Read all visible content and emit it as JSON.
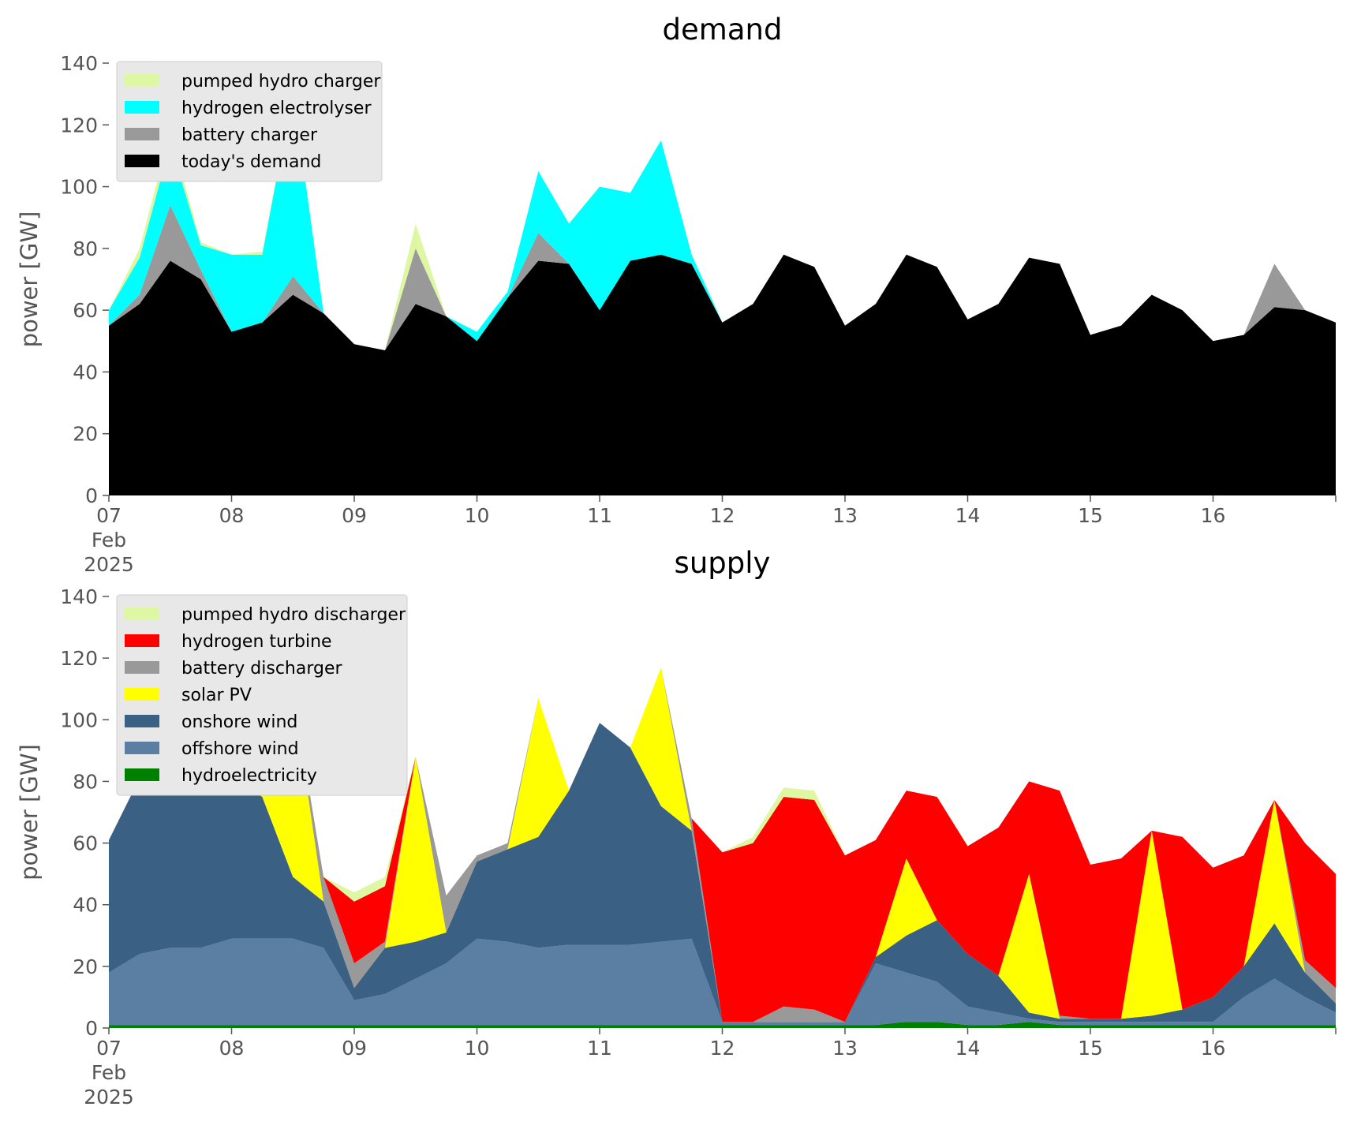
{
  "chart_data": [
    {
      "id": "demand",
      "type": "area",
      "stacked": true,
      "title": "demand",
      "ylabel": "power [GW]",
      "ylim": [
        0,
        140
      ],
      "yticks": [
        0,
        20,
        40,
        60,
        80,
        100,
        120,
        140
      ],
      "xlim": [
        "2025-02-07T00:00",
        "2025-02-17T00:00"
      ],
      "x_tick_labels": [
        "07\nFeb\n2025",
        "08",
        "09",
        "10",
        "11",
        "12",
        "13",
        "14",
        "15",
        "16"
      ],
      "grid": false,
      "legend_position": "top-left",
      "x": [
        "2025-02-07T00:00",
        "2025-02-07T06:00",
        "2025-02-07T12:00",
        "2025-02-07T18:00",
        "2025-02-08T00:00",
        "2025-02-08T06:00",
        "2025-02-08T12:00",
        "2025-02-08T18:00",
        "2025-02-09T00:00",
        "2025-02-09T06:00",
        "2025-02-09T12:00",
        "2025-02-09T18:00",
        "2025-02-10T00:00",
        "2025-02-10T06:00",
        "2025-02-10T12:00",
        "2025-02-10T18:00",
        "2025-02-11T00:00",
        "2025-02-11T06:00",
        "2025-02-11T12:00",
        "2025-02-11T18:00",
        "2025-02-12T00:00",
        "2025-02-12T06:00",
        "2025-02-12T12:00",
        "2025-02-12T18:00",
        "2025-02-13T00:00",
        "2025-02-13T06:00",
        "2025-02-13T12:00",
        "2025-02-13T18:00",
        "2025-02-14T00:00",
        "2025-02-14T06:00",
        "2025-02-14T12:00",
        "2025-02-14T18:00",
        "2025-02-15T00:00",
        "2025-02-15T06:00",
        "2025-02-15T12:00",
        "2025-02-15T18:00",
        "2025-02-16T00:00",
        "2025-02-16T06:00",
        "2025-02-16T12:00",
        "2025-02-16T18:00",
        "2025-02-17T00:00"
      ],
      "series": [
        {
          "name": "today's demand",
          "color": "#000000",
          "values": [
            55,
            62,
            76,
            70,
            53,
            56,
            65,
            59,
            49,
            47,
            62,
            58,
            50,
            64,
            76,
            75,
            60,
            76,
            78,
            75,
            56,
            62,
            78,
            74,
            55,
            62,
            78,
            74,
            57,
            62,
            77,
            75,
            52,
            55,
            65,
            60,
            50,
            52,
            61,
            60,
            56
          ]
        },
        {
          "name": "battery charger",
          "color": "#999999",
          "values": [
            0,
            3,
            18,
            3,
            0,
            0,
            6,
            0,
            0,
            0,
            18,
            0,
            0,
            0,
            9,
            0,
            0,
            0,
            0,
            0,
            0,
            0,
            0,
            0,
            0,
            0,
            0,
            0,
            0,
            0,
            0,
            0,
            0,
            0,
            0,
            0,
            0,
            0,
            14,
            0,
            0
          ]
        },
        {
          "name": "hydrogen electrolyser",
          "color": "#00FFFF",
          "values": [
            5,
            12,
            20,
            8,
            25,
            22,
            60,
            0,
            0,
            0,
            0,
            0,
            3,
            2,
            20,
            13,
            40,
            22,
            37,
            3,
            0,
            0,
            0,
            0,
            0,
            0,
            0,
            0,
            0,
            0,
            0,
            0,
            0,
            0,
            0,
            0,
            0,
            0,
            0,
            0,
            0
          ]
        },
        {
          "name": "pumped hydro charger",
          "color": "#DDF7A3",
          "values": [
            0,
            3,
            4,
            1,
            0,
            1,
            0,
            0,
            0,
            0,
            8,
            0,
            0,
            0,
            0,
            0,
            0,
            0,
            0,
            0,
            0,
            0,
            0,
            0,
            0,
            0,
            0,
            0,
            0,
            0,
            0,
            0,
            0,
            0,
            0,
            0,
            0,
            0,
            0,
            0,
            0
          ]
        }
      ]
    },
    {
      "id": "supply",
      "type": "area",
      "stacked": true,
      "title": "supply",
      "ylabel": "power [GW]",
      "ylim": [
        0,
        140
      ],
      "yticks": [
        0,
        20,
        40,
        60,
        80,
        100,
        120,
        140
      ],
      "xlim": [
        "2025-02-07T00:00",
        "2025-02-17T00:00"
      ],
      "x_tick_labels": [
        "07\nFeb\n2025",
        "08",
        "09",
        "10",
        "11",
        "12",
        "13",
        "14",
        "15",
        "16"
      ],
      "grid": false,
      "legend_position": "top-left",
      "x": [
        "2025-02-07T00:00",
        "2025-02-07T06:00",
        "2025-02-07T12:00",
        "2025-02-07T18:00",
        "2025-02-08T00:00",
        "2025-02-08T06:00",
        "2025-02-08T12:00",
        "2025-02-08T18:00",
        "2025-02-09T00:00",
        "2025-02-09T06:00",
        "2025-02-09T12:00",
        "2025-02-09T18:00",
        "2025-02-10T00:00",
        "2025-02-10T06:00",
        "2025-02-10T12:00",
        "2025-02-10T18:00",
        "2025-02-11T00:00",
        "2025-02-11T06:00",
        "2025-02-11T12:00",
        "2025-02-11T18:00",
        "2025-02-12T00:00",
        "2025-02-12T06:00",
        "2025-02-12T12:00",
        "2025-02-12T18:00",
        "2025-02-13T00:00",
        "2025-02-13T06:00",
        "2025-02-13T12:00",
        "2025-02-13T18:00",
        "2025-02-14T00:00",
        "2025-02-14T06:00",
        "2025-02-14T12:00",
        "2025-02-14T18:00",
        "2025-02-15T00:00",
        "2025-02-15T06:00",
        "2025-02-15T12:00",
        "2025-02-15T18:00",
        "2025-02-16T00:00",
        "2025-02-16T06:00",
        "2025-02-16T12:00",
        "2025-02-16T18:00",
        "2025-02-17T00:00"
      ],
      "series": [
        {
          "name": "hydroelectricity",
          "color": "#008000",
          "values": [
            1,
            1,
            1,
            1,
            1,
            1,
            1,
            1,
            1,
            1,
            1,
            1,
            1,
            1,
            1,
            1,
            1,
            1,
            1,
            1,
            1,
            1,
            1,
            1,
            1,
            1,
            2,
            2,
            1,
            1,
            2,
            1,
            1,
            1,
            1,
            1,
            1,
            1,
            1,
            1,
            1
          ]
        },
        {
          "name": "offshore wind",
          "color": "#5B7FA3",
          "values": [
            17,
            23,
            25,
            25,
            28,
            28,
            28,
            25,
            8,
            10,
            15,
            20,
            28,
            27,
            25,
            26,
            26,
            26,
            27,
            28,
            1,
            1,
            1,
            1,
            1,
            20,
            16,
            13,
            6,
            4,
            1,
            1,
            1,
            1,
            1,
            1,
            1,
            9,
            15,
            9,
            4
          ]
        },
        {
          "name": "onshore wind",
          "color": "#3A6183",
          "values": [
            43,
            57,
            55,
            55,
            52,
            46,
            20,
            15,
            4,
            15,
            12,
            10,
            25,
            30,
            36,
            50,
            72,
            64,
            44,
            35,
            0,
            0,
            0,
            0,
            0,
            2,
            12,
            20,
            17,
            12,
            2,
            1,
            1,
            1,
            2,
            4,
            8,
            10,
            18,
            8,
            3
          ]
        },
        {
          "name": "solar PV",
          "color": "#FFFF00",
          "values": [
            0,
            0,
            35,
            3,
            0,
            5,
            60,
            0,
            0,
            0,
            60,
            0,
            0,
            0,
            45,
            0,
            0,
            0,
            45,
            0,
            0,
            0,
            0,
            0,
            0,
            0,
            25,
            0,
            0,
            0,
            45,
            0,
            0,
            0,
            60,
            0,
            0,
            0,
            40,
            0,
            0
          ]
        },
        {
          "name": "battery discharger",
          "color": "#999999",
          "values": [
            0,
            0,
            0,
            0,
            0,
            0,
            0,
            8,
            8,
            2,
            0,
            12,
            2,
            2,
            0,
            0,
            0,
            0,
            0,
            4,
            0,
            0,
            5,
            4,
            0,
            0,
            0,
            0,
            0,
            0,
            0,
            1,
            0,
            0,
            0,
            0,
            0,
            0,
            0,
            4,
            5
          ]
        },
        {
          "name": "hydrogen turbine",
          "color": "#FF0000",
          "values": [
            0,
            0,
            0,
            0,
            0,
            0,
            0,
            0,
            20,
            18,
            0,
            0,
            0,
            0,
            0,
            0,
            0,
            0,
            0,
            0,
            55,
            58,
            68,
            68,
            54,
            38,
            22,
            40,
            35,
            48,
            30,
            73,
            50,
            52,
            0,
            56,
            42,
            36,
            0,
            38,
            37
          ]
        },
        {
          "name": "pumped hydro discharger",
          "color": "#DDF7A3",
          "values": [
            0,
            0,
            0,
            0,
            0,
            0,
            0,
            0,
            3,
            3,
            0,
            0,
            0,
            0,
            0,
            0,
            0,
            0,
            0,
            0,
            0,
            2,
            3,
            3,
            0,
            0,
            0,
            0,
            0,
            0,
            0,
            0,
            0,
            0,
            0,
            0,
            0,
            0,
            0,
            0,
            0
          ]
        }
      ]
    }
  ]
}
